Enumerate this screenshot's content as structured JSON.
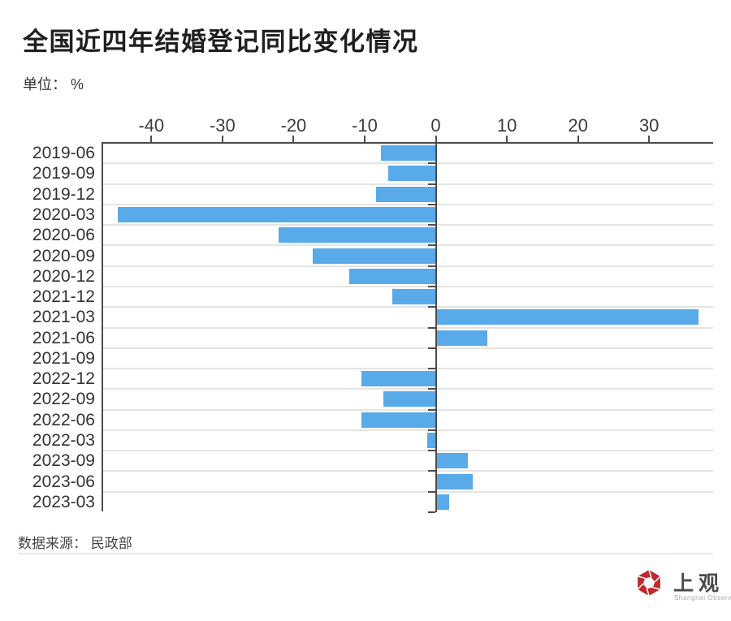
{
  "header": {
    "title": "全国近四年结婚登记同比变化情况",
    "unit_label": "单位： %"
  },
  "chart_data": {
    "type": "bar",
    "orientation": "horizontal",
    "title": "全国近四年结婚登记同比变化情况",
    "unit": "%",
    "categories": [
      "2019-06",
      "2019-09",
      "2019-12",
      "2020-03",
      "2020-06",
      "2020-09",
      "2020-12",
      "2021-12",
      "2021-03",
      "2021-06",
      "2021-09",
      "2022-12",
      "2022-09",
      "2022-06",
      "2022-03",
      "2023-09",
      "2023-06",
      "2023-03"
    ],
    "values": [
      -7.7,
      -6.7,
      -8.4,
      -44.7,
      -22.1,
      -17.3,
      -12.2,
      -6.1,
      36.9,
      7.3,
      0,
      -10.5,
      -7.4,
      -10.4,
      -1.2,
      4.5,
      5.2,
      1.9
    ],
    "xticks": [
      -40,
      -30,
      -20,
      -10,
      0,
      10,
      20,
      30
    ],
    "xlim": [
      -47,
      39
    ],
    "grid": true,
    "legend_position": "none",
    "bar_color": "#58aae9",
    "axis_color": "#4c4c4c",
    "grid_color": "#e4e4e4"
  },
  "footer": {
    "source_label": "数据来源： 民政部",
    "logo": {
      "name": "上观",
      "subtitle": "Shanghai Observer",
      "brand_color": "#c1272d"
    }
  }
}
